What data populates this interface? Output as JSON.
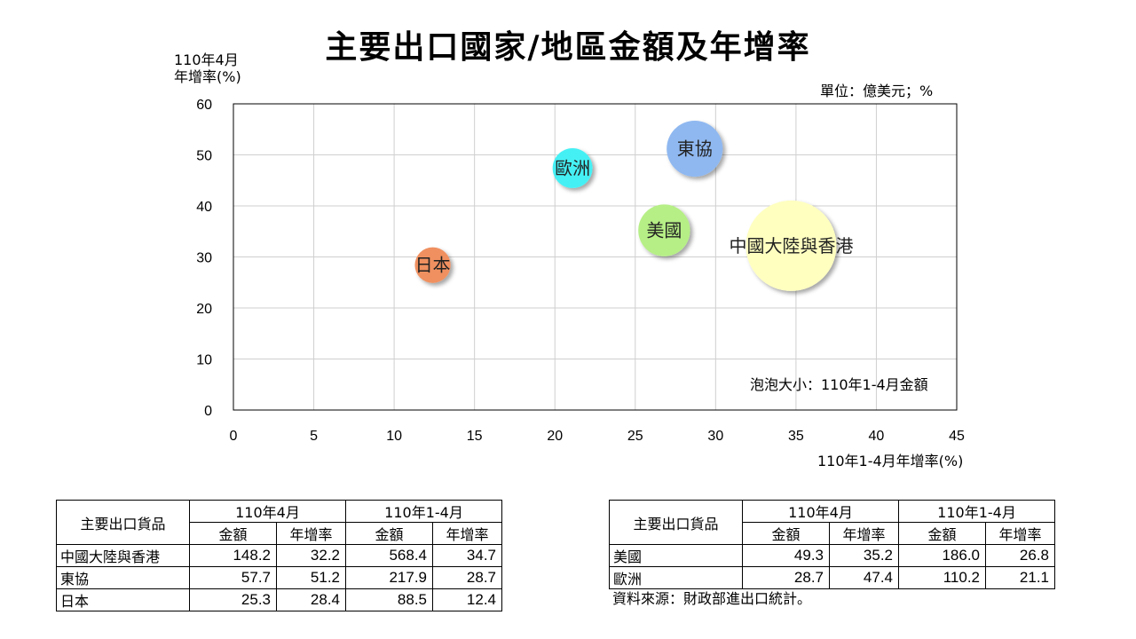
{
  "title": "主要出口國家/地區金額及年增率",
  "chart_data": {
    "type": "scatter",
    "title": "主要出口國家/地區金額及年增率",
    "ylabel_line1": "110年4月",
    "ylabel_line2": "年增率(%)",
    "xlabel": "110年1-4月年增率(%)",
    "unit": "單位：億美元；%",
    "size_note": "泡泡大小：110年1-4月金額",
    "xlim": [
      0,
      45
    ],
    "ylim": [
      0,
      60
    ],
    "x_ticks": [
      0,
      5,
      10,
      15,
      20,
      25,
      30,
      35,
      40,
      45
    ],
    "y_ticks": [
      0,
      10,
      20,
      30,
      40,
      50,
      60
    ],
    "grid": true,
    "points": [
      {
        "name": "中國大陸與香港",
        "x": 34.7,
        "y": 32.2,
        "size": 568.4,
        "color": "#ffffc0"
      },
      {
        "name": "東協",
        "x": 28.7,
        "y": 51.2,
        "size": 217.9,
        "color": "#8fb8f0"
      },
      {
        "name": "日本",
        "x": 12.4,
        "y": 28.4,
        "size": 88.5,
        "color": "#f09060"
      },
      {
        "name": "美國",
        "x": 26.8,
        "y": 35.2,
        "size": 186.0,
        "color": "#b6ef86"
      },
      {
        "name": "歐洲",
        "x": 21.1,
        "y": 47.4,
        "size": 110.2,
        "color": "#44f0f4"
      }
    ]
  },
  "table_headers": {
    "goods": "主要出口貨品",
    "apr": "110年4月",
    "jan_apr": "110年1-4月",
    "amount": "金額",
    "growth": "年增率"
  },
  "table_left": [
    {
      "name": "中國大陸與香港",
      "apr_amount": "148.2",
      "apr_growth": "32.2",
      "ytd_amount": "568.4",
      "ytd_growth": "34.7"
    },
    {
      "name": "東協",
      "apr_amount": "57.7",
      "apr_growth": "51.2",
      "ytd_amount": "217.9",
      "ytd_growth": "28.7"
    },
    {
      "name": "日本",
      "apr_amount": "25.3",
      "apr_growth": "28.4",
      "ytd_amount": "88.5",
      "ytd_growth": "12.4"
    }
  ],
  "table_right": [
    {
      "name": "美國",
      "apr_amount": "49.3",
      "apr_growth": "35.2",
      "ytd_amount": "186.0",
      "ytd_growth": "26.8"
    },
    {
      "name": "歐洲",
      "apr_amount": "28.7",
      "apr_growth": "47.4",
      "ytd_amount": "110.2",
      "ytd_growth": "21.1"
    }
  ],
  "source": "資料來源：財政部進出口統計。"
}
